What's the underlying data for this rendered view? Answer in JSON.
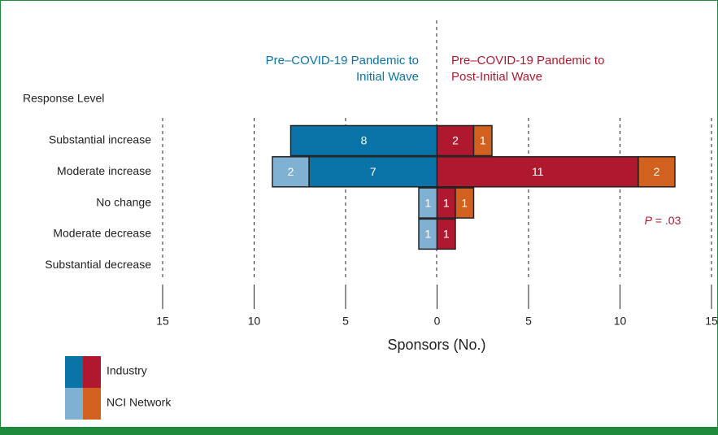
{
  "chart_data": {
    "type": "diverging_bar",
    "y_label": "Response Level",
    "x_label": "Sponsors (No.)",
    "categories": [
      "Substantial increase",
      "Moderate increase",
      "No change",
      "Moderate decrease",
      "Substantial decrease"
    ],
    "xlim": [
      -15,
      15
    ],
    "xticks": [
      {
        "value": -15,
        "label": "15"
      },
      {
        "value": -10,
        "label": "10"
      },
      {
        "value": -5,
        "label": "5"
      },
      0,
      5,
      10,
      15
    ],
    "grid": true,
    "annotation": [
      "P",
      " = .03"
    ],
    "legend": [
      "Industry",
      "NCI Network"
    ],
    "groups": [
      {
        "title": [
          "Pre–COVID-19 Pandemic to",
          "Initial Wave"
        ],
        "color": "#0a74a8",
        "series": [
          {
            "color": "#0a74a8",
            "values": [
              -8,
              -7,
              null,
              null,
              null
            ],
            "value_labels": [
              "8",
              "7",
              null,
              null,
              null
            ]
          },
          {
            "color": "#80b1d3",
            "values": [
              null,
              -2,
              -1,
              -1,
              null
            ],
            "value_labels": [
              null,
              "2",
              "1",
              "1",
              null
            ]
          }
        ]
      },
      {
        "title": [
          "Pre–COVID-19 Pandemic to",
          "Post-Initial Wave"
        ],
        "color": "#b0182f",
        "series": [
          {
            "color": "#b0182f",
            "values": [
              2,
              11,
              1,
              1,
              null
            ]
          },
          {
            "color": "#d2601e",
            "values": [
              1,
              2,
              1,
              null,
              null
            ]
          }
        ]
      }
    ]
  }
}
